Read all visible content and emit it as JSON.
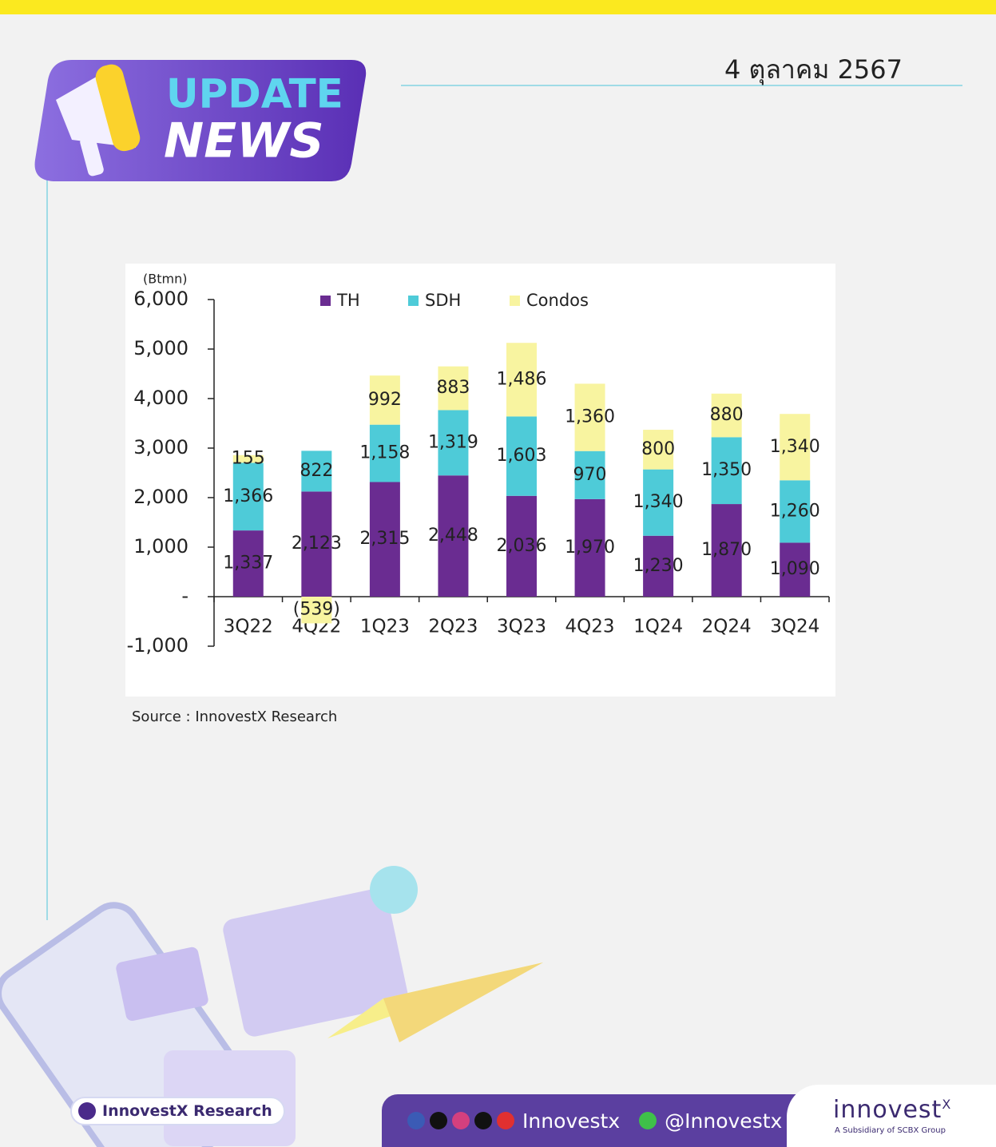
{
  "header": {
    "badge_line1": "UPDATE",
    "badge_line2": "NEWS",
    "date": "4 ตุลาคม 2567"
  },
  "chart_data": {
    "type": "stacked-bar",
    "y_unit_label": "(Btmn)",
    "categories": [
      "3Q22",
      "4Q22",
      "1Q23",
      "2Q23",
      "3Q23",
      "4Q23",
      "1Q24",
      "2Q24",
      "3Q24"
    ],
    "series": [
      {
        "name": "TH",
        "color": "#6a2c91",
        "values": [
          1337,
          2123,
          2315,
          2448,
          2036,
          1970,
          1230,
          1870,
          1090
        ],
        "value_labels": [
          "1,337",
          "2,123",
          "2,315",
          "2,448",
          "2,036",
          "1,970",
          "1,230",
          "1,870",
          "1,090"
        ]
      },
      {
        "name": "SDH",
        "color": "#4ecbd8",
        "values": [
          1366,
          822,
          1158,
          1319,
          1603,
          970,
          1340,
          1350,
          1260
        ],
        "value_labels": [
          "1,366",
          "822",
          "1,158",
          "1,319",
          "1,603",
          "970",
          "1,340",
          "1,350",
          "1,260"
        ]
      },
      {
        "name": "Condos",
        "color": "#f8f4a0",
        "values": [
          155,
          -539,
          992,
          883,
          1486,
          1360,
          800,
          880,
          1340
        ],
        "value_labels": [
          "155",
          "(539)",
          "992",
          "883",
          "1,486",
          "1,360",
          "800",
          "880",
          "1,340"
        ]
      }
    ],
    "ylim": [
      -1000,
      6000
    ],
    "yticks": [
      {
        "value": -1000,
        "label": "-1,000"
      },
      {
        "value": 0,
        "label": "-"
      },
      {
        "value": 1000,
        "label": "1,000"
      },
      {
        "value": 2000,
        "label": "2,000"
      },
      {
        "value": 3000,
        "label": "3,000"
      },
      {
        "value": 4000,
        "label": "4,000"
      },
      {
        "value": 5000,
        "label": "5,000"
      },
      {
        "value": 6000,
        "label": "6,000"
      }
    ],
    "legend": "top",
    "grid": false
  },
  "source": "Source : InnovestX Research",
  "footer": {
    "brand_pill": "InnovestX Research",
    "social_name": "Innovestx",
    "line_id": "@Innovestx",
    "logo": "innovest",
    "logo_sup": "X",
    "tagline": "A Subsidiary of SCBX Group"
  }
}
